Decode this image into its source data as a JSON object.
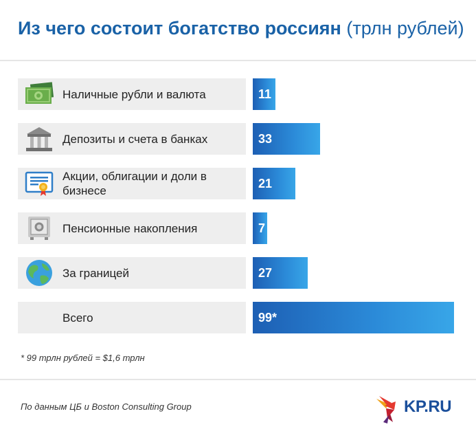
{
  "title": {
    "main": "Из чего состоит богатство россиян",
    "unit": "(трлн рублей)"
  },
  "chart_data": {
    "type": "bar",
    "title": "Из чего состоит богатство россиян (трлн рублей)",
    "categories": [
      "Наличные рубли и валюта",
      "Депозиты и счета в банках",
      "Акции, облигации и доли в бизнесе",
      "Пенсионные накопления",
      "За границей",
      "Всего"
    ],
    "values": [
      11,
      33,
      21,
      7,
      27,
      99
    ],
    "value_labels": [
      "11",
      "33",
      "21",
      "7",
      "27",
      "99*"
    ],
    "icons": [
      "cash-icon",
      "bank-icon",
      "certificate-icon",
      "safe-icon",
      "globe-icon",
      ""
    ],
    "xlim": [
      0,
      99
    ],
    "orientation": "horizontal",
    "bar_color": "#2b8ad8"
  },
  "footnote": "* 99 трлн рублей = $1,6 трлн",
  "source": "По данным ЦБ и Boston Consulting Group",
  "logo": {
    "text": "KP.RU"
  },
  "colors": {
    "title": "#1a62a7",
    "label_bg": "#eeeeee",
    "bar_start": "#1d5fb4",
    "bar_end": "#38a6e8"
  }
}
